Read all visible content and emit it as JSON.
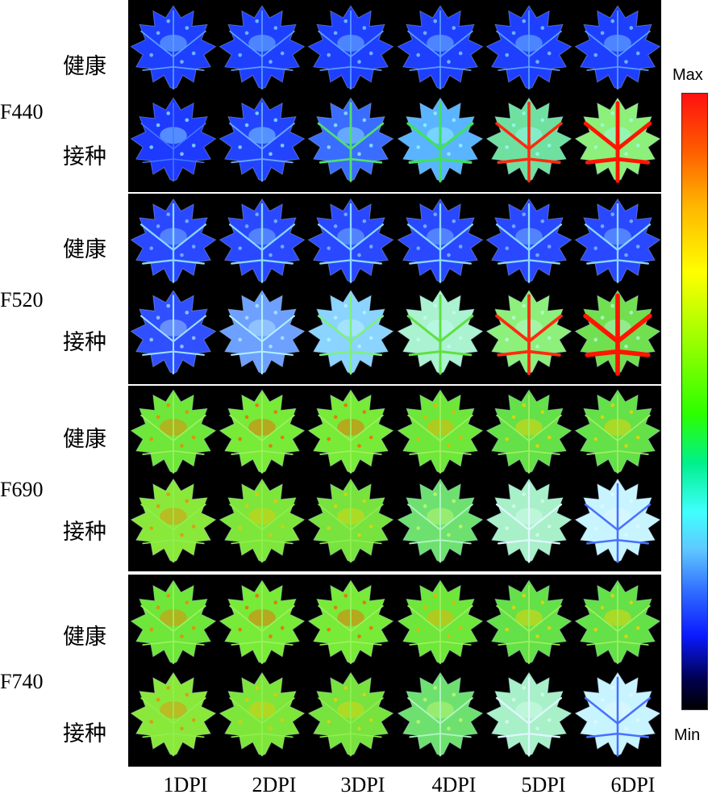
{
  "bands": [
    {
      "label": "F440",
      "rows": [
        {
          "label": "健康",
          "scheme": "blue-healthy"
        },
        {
          "label": "接种",
          "scheme": "blue-infected"
        }
      ]
    },
    {
      "label": "F520",
      "rows": [
        {
          "label": "健康",
          "scheme": "blue-healthy-bright"
        },
        {
          "label": "接种",
          "scheme": "blue-infected-bright"
        }
      ]
    },
    {
      "label": "F690",
      "rows": [
        {
          "label": "健康",
          "scheme": "green-healthy"
        },
        {
          "label": "接种",
          "scheme": "green-infected"
        }
      ]
    },
    {
      "label": "F740",
      "rows": [
        {
          "label": "健康",
          "scheme": "green-healthy"
        },
        {
          "label": "接种",
          "scheme": "green-infected"
        }
      ]
    }
  ],
  "columns": [
    "1DPI",
    "2DPI",
    "3DPI",
    "4DPI",
    "5DPI",
    "6DPI"
  ],
  "colorbar": {
    "max_label": "Max",
    "min_label": "Min"
  }
}
